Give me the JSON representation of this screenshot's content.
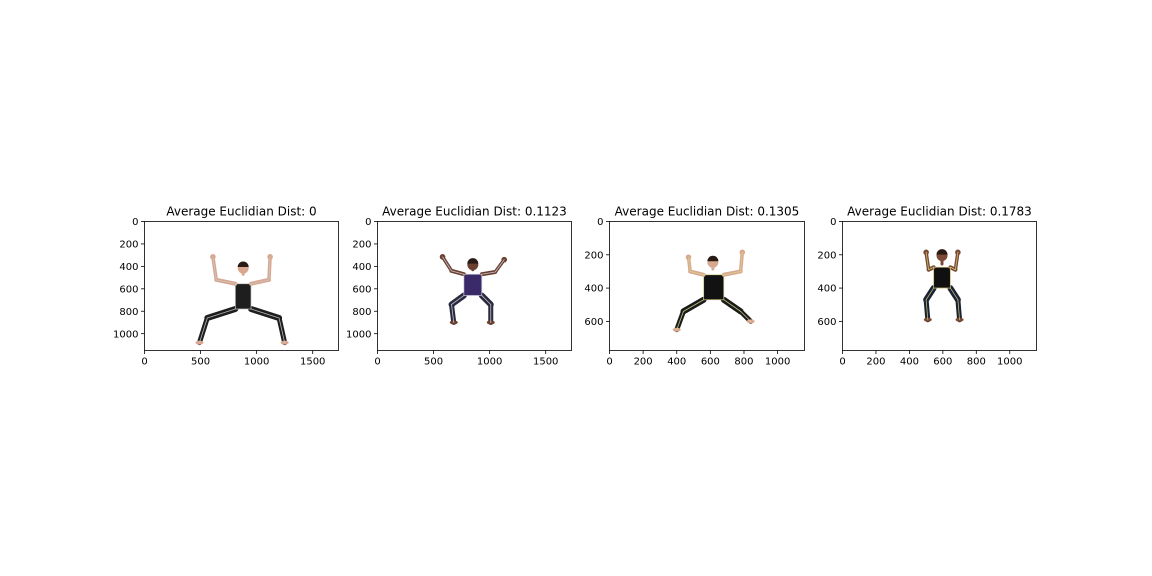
{
  "chart_data": [
    {
      "type": "image",
      "title": "Average Euclidian Dist: 0",
      "xlim": [
        0,
        1730
      ],
      "ylim": [
        1150,
        0
      ],
      "xticks": [
        0,
        500,
        1000,
        1500
      ],
      "yticks": [
        0,
        200,
        400,
        600,
        800,
        1000
      ],
      "outfit": {
        "top": "#1e1e1e",
        "bottom": "#1e1e1e",
        "skin": "#d9a78f",
        "skeleton": "#c8c8c8"
      },
      "pose": {
        "head": [
          880,
          415
        ],
        "neck": [
          880,
          470
        ],
        "l_hand": [
          610,
          315
        ],
        "r_hand": [
          1120,
          315
        ],
        "l_elbow": [
          640,
          520
        ],
        "r_elbow": [
          1110,
          520
        ],
        "l_shoulder": [
          810,
          555
        ],
        "r_shoulder": [
          950,
          555
        ],
        "l_hip": [
          810,
          780
        ],
        "r_hip": [
          950,
          780
        ],
        "l_knee": [
          560,
          860
        ],
        "r_knee": [
          1200,
          860
        ],
        "l_foot": [
          490,
          1080
        ],
        "r_foot": [
          1250,
          1080
        ]
      }
    },
    {
      "type": "image",
      "title": "Average Euclidian Dist: 0.1123",
      "xlim": [
        0,
        1730
      ],
      "ylim": [
        1150,
        0
      ],
      "xticks": [
        0,
        500,
        1000,
        1500
      ],
      "yticks": [
        0,
        200,
        400,
        600,
        800,
        1000
      ],
      "outfit": {
        "top": "#3a2a6a",
        "bottom": "#2a2a3e",
        "skin": "#6b4030",
        "skeleton": "#d0d0e0"
      },
      "pose": {
        "head": [
          850,
          385
        ],
        "neck": [
          850,
          430
        ],
        "l_hand": [
          580,
          315
        ],
        "r_hand": [
          1130,
          340
        ],
        "l_elbow": [
          660,
          440
        ],
        "r_elbow": [
          1050,
          450
        ],
        "l_shoulder": [
          770,
          470
        ],
        "r_shoulder": [
          930,
          470
        ],
        "l_hip": [
          770,
          660
        ],
        "r_hip": [
          930,
          660
        ],
        "l_knee": [
          660,
          740
        ],
        "r_knee": [
          1010,
          740
        ],
        "l_foot": [
          680,
          900
        ],
        "r_foot": [
          1010,
          900
        ]
      }
    },
    {
      "type": "image",
      "title": "Average Euclidian Dist: 0.1305",
      "xlim": [
        0,
        1160
      ],
      "ylim": [
        775,
        0
      ],
      "xticks": [
        0,
        200,
        400,
        600,
        800,
        1000
      ],
      "yticks": [
        0,
        200,
        400,
        600
      ],
      "outfit": {
        "top": "#121212",
        "bottom": "#1a1a1a",
        "skin": "#d8a890",
        "skeleton": "#d6d68a"
      },
      "pose": {
        "head": [
          615,
          245
        ],
        "neck": [
          615,
          285
        ],
        "l_hand": [
          470,
          215
        ],
        "r_hand": [
          790,
          185
        ],
        "l_elbow": [
          480,
          300
        ],
        "r_elbow": [
          780,
          300
        ],
        "l_shoulder": [
          560,
          320
        ],
        "r_shoulder": [
          680,
          320
        ],
        "l_hip": [
          560,
          470
        ],
        "r_hip": [
          680,
          470
        ],
        "l_knee": [
          440,
          540
        ],
        "r_knee": [
          780,
          540
        ],
        "l_foot": [
          400,
          650
        ],
        "r_foot": [
          840,
          600
        ]
      }
    },
    {
      "type": "image",
      "title": "Average Euclidian Dist: 0.1783",
      "xlim": [
        0,
        1160
      ],
      "ylim": [
        775,
        0
      ],
      "xticks": [
        0,
        200,
        400,
        600,
        800,
        1000
      ],
      "yticks": [
        0,
        200,
        400,
        600
      ],
      "outfit": {
        "top": "#101010",
        "bottom": "#1a2236",
        "skin": "#7a4a36",
        "skeleton": "#d6c878"
      },
      "pose": {
        "head": [
          595,
          205
        ],
        "neck": [
          595,
          255
        ],
        "l_hand": [
          500,
          185
        ],
        "r_hand": [
          690,
          185
        ],
        "l_elbow": [
          515,
          290
        ],
        "r_elbow": [
          675,
          290
        ],
        "l_shoulder": [
          545,
          275
        ],
        "r_shoulder": [
          645,
          275
        ],
        "l_hip": [
          545,
          400
        ],
        "r_hip": [
          645,
          400
        ],
        "l_knee": [
          500,
          470
        ],
        "r_knee": [
          690,
          470
        ],
        "l_foot": [
          510,
          590
        ],
        "r_foot": [
          700,
          590
        ]
      }
    }
  ]
}
